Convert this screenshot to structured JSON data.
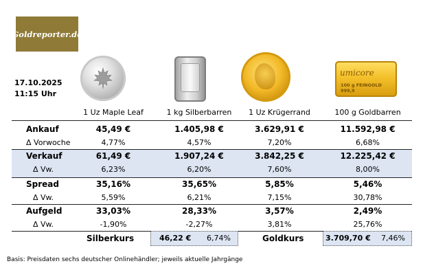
{
  "logo": {
    "text": "Goldreporter.de"
  },
  "stamp": {
    "date": "17.10.2025",
    "time": "11:15 Uhr"
  },
  "products": [
    {
      "name": "1 Uz Maple Leaf"
    },
    {
      "name": "1 kg Silberbarren"
    },
    {
      "name": "1 Uz Krügerrand"
    },
    {
      "name": "100 g Goldbarren"
    }
  ],
  "gold_bar_engraving": {
    "brand": "umicore",
    "line": "100 g FEINGOLD 999,9"
  },
  "rows": {
    "ankauf": {
      "label": "Ankauf",
      "values": [
        "45,49 €",
        "1.405,98 €",
        "3.629,91 €",
        "11.592,98 €"
      ]
    },
    "ankauf_delta": {
      "label": "Δ Vorwoche",
      "values": [
        "4,77%",
        "4,57%",
        "7,20%",
        "6,68%"
      ]
    },
    "verkauf": {
      "label": "Verkauf",
      "values": [
        "61,49 €",
        "1.907,24 €",
        "3.842,25 €",
        "12.225,42 €"
      ]
    },
    "verkauf_delta": {
      "label": "Δ Vw.",
      "values": [
        "6,23%",
        "6,20%",
        "7,60%",
        "8,00%"
      ]
    },
    "spread": {
      "label": "Spread",
      "values": [
        "35,16%",
        "35,65%",
        "5,85%",
        "5,46%"
      ]
    },
    "spread_delta": {
      "label": "Δ Vw.",
      "values": [
        "5,59%",
        "6,21%",
        "7,15%",
        "30,78%"
      ]
    },
    "aufgeld": {
      "label": "Aufgeld",
      "values": [
        "33,03%",
        "28,33%",
        "3,57%",
        "2,49%"
      ]
    },
    "aufgeld_delta": {
      "label": "Δ Vw.",
      "values": [
        "-1,90%",
        "-2,27%",
        "3,81%",
        "25,76%"
      ]
    }
  },
  "kurse": {
    "silber": {
      "label": "Silberkurs",
      "value": "46,22 €",
      "change": "6,74%"
    },
    "gold": {
      "label": "Goldkurs",
      "value": "3.709,70 €",
      "change": "7,46%"
    }
  },
  "footnote": "Basis: Preisdaten sechs deutscher Onlinehändler; jeweils aktuelle Jahrgänge",
  "colors": {
    "logo_bg": "#8f7a37",
    "highlight": "#dde5f3"
  }
}
